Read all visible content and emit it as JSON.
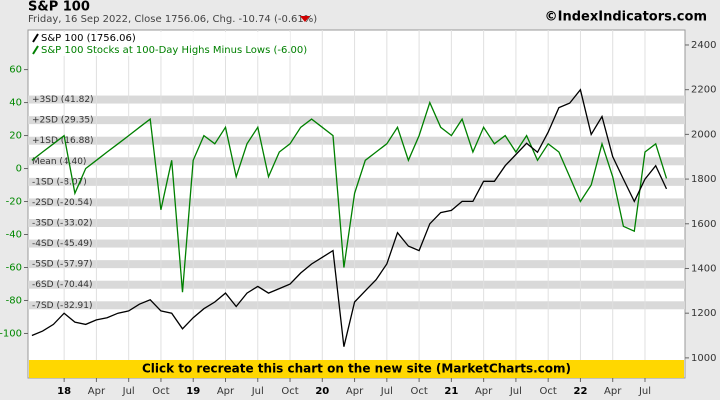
{
  "chart_data": {
    "type": "line",
    "title": "S&P 100",
    "subtitle": "Friday, 16 Sep 2022, Close 1756.06, Chg. -10.74 (-0.61%)",
    "source": "©IndexIndicators.com",
    "banner": "Click to recreate this chart on the new site (MarketCharts.com)",
    "x": [
      2017.75,
      2017.833,
      2017.917,
      2018,
      2018.083,
      2018.167,
      2018.25,
      2018.333,
      2018.417,
      2018.5,
      2018.583,
      2018.667,
      2018.75,
      2018.833,
      2018.917,
      2019,
      2019.083,
      2019.167,
      2019.25,
      2019.333,
      2019.417,
      2019.5,
      2019.583,
      2019.667,
      2019.75,
      2019.833,
      2019.917,
      2020,
      2020.083,
      2020.167,
      2020.25,
      2020.333,
      2020.417,
      2020.5,
      2020.583,
      2020.667,
      2020.75,
      2020.833,
      2020.917,
      2021,
      2021.083,
      2021.167,
      2021.25,
      2021.333,
      2021.417,
      2021.5,
      2021.583,
      2021.667,
      2021.75,
      2021.833,
      2021.917,
      2022,
      2022.083,
      2022.167,
      2022.25,
      2022.333,
      2022.417,
      2022.5,
      2022.583,
      2022.667
    ],
    "xlim": [
      2017.72,
      2022.81
    ],
    "xticks": [
      {
        "value": 2018,
        "label": "18"
      },
      {
        "value": 2018.25,
        "label": "Apr"
      },
      {
        "value": 2018.5,
        "label": "Jul"
      },
      {
        "value": 2018.75,
        "label": "Oct"
      },
      {
        "value": 2019,
        "label": "19"
      },
      {
        "value": 2019.25,
        "label": "Apr"
      },
      {
        "value": 2019.5,
        "label": "Jul"
      },
      {
        "value": 2019.75,
        "label": "Oct"
      },
      {
        "value": 2020,
        "label": "20"
      },
      {
        "value": 2020.25,
        "label": "Apr"
      },
      {
        "value": 2020.5,
        "label": "Jul"
      },
      {
        "value": 2020.75,
        "label": "Oct"
      },
      {
        "value": 2021,
        "label": "21"
      },
      {
        "value": 2021.25,
        "label": "Apr"
      },
      {
        "value": 2021.5,
        "label": "Jul"
      },
      {
        "value": 2021.75,
        "label": "Oct"
      },
      {
        "value": 2022,
        "label": "22"
      },
      {
        "value": 2022.25,
        "label": "Apr"
      },
      {
        "value": 2022.5,
        "label": "Jul"
      }
    ],
    "ylim": [
      -127,
      84
    ],
    "yticks": [
      60,
      40,
      20,
      0,
      -20,
      -40,
      -60,
      -80,
      -100
    ],
    "y2lim": [
      910,
      2467
    ],
    "y2ticks": [
      1000,
      1200,
      1400,
      1600,
      1800,
      2000,
      2200,
      2400
    ],
    "grid": true,
    "sd_bands": [
      {
        "label": "+3SD (41.82)",
        "value": 41.82
      },
      {
        "label": "+2SD (29.35)",
        "value": 29.35
      },
      {
        "label": "+1SD (16.88)",
        "value": 16.88
      },
      {
        "label": "Mean (4.40)",
        "value": 4.4
      },
      {
        "label": "-1SD (-8.07)",
        "value": -8.07
      },
      {
        "label": "-2SD (-20.54)",
        "value": -20.54
      },
      {
        "label": "-3SD (-33.02)",
        "value": -33.02
      },
      {
        "label": "-4SD (-45.49)",
        "value": -45.49
      },
      {
        "label": "-5SD (-57.97)",
        "value": -57.97
      },
      {
        "label": "-6SD (-70.44)",
        "value": -70.44
      },
      {
        "label": "-7SD (-82.91)",
        "value": -82.91
      }
    ],
    "series": [
      {
        "name": "S&P 100 Stocks at 100-Day Highs Minus Lows (-6.00)",
        "color": "#008000",
        "values": [
          5,
          10,
          15,
          20,
          -15,
          0,
          5,
          10,
          15,
          20,
          25,
          30,
          -25,
          5,
          -75,
          5,
          20,
          15,
          25,
          -5,
          15,
          25,
          -5,
          10,
          15,
          25,
          30,
          25,
          20,
          -60,
          -15,
          5,
          10,
          15,
          25,
          5,
          20,
          40,
          25,
          20,
          30,
          10,
          25,
          15,
          20,
          10,
          20,
          5,
          15,
          10,
          -5,
          -20,
          -10,
          15,
          -5,
          -35,
          -38,
          10,
          15,
          -6
        ]
      },
      {
        "name": "S&P 100 (1756.06)",
        "color": "#000000",
        "axis": "y2",
        "values": [
          1100,
          1120,
          1150,
          1200,
          1160,
          1150,
          1170,
          1180,
          1200,
          1210,
          1240,
          1260,
          1210,
          1200,
          1130,
          1180,
          1220,
          1250,
          1290,
          1230,
          1290,
          1320,
          1290,
          1310,
          1330,
          1380,
          1420,
          1450,
          1480,
          1050,
          1250,
          1300,
          1350,
          1420,
          1560,
          1500,
          1480,
          1600,
          1650,
          1660,
          1700,
          1700,
          1790,
          1790,
          1860,
          1910,
          1960,
          1920,
          2010,
          2120,
          2140,
          2200,
          2000,
          2080,
          1900,
          1800,
          1700,
          1800,
          1860,
          1756
        ]
      }
    ]
  }
}
